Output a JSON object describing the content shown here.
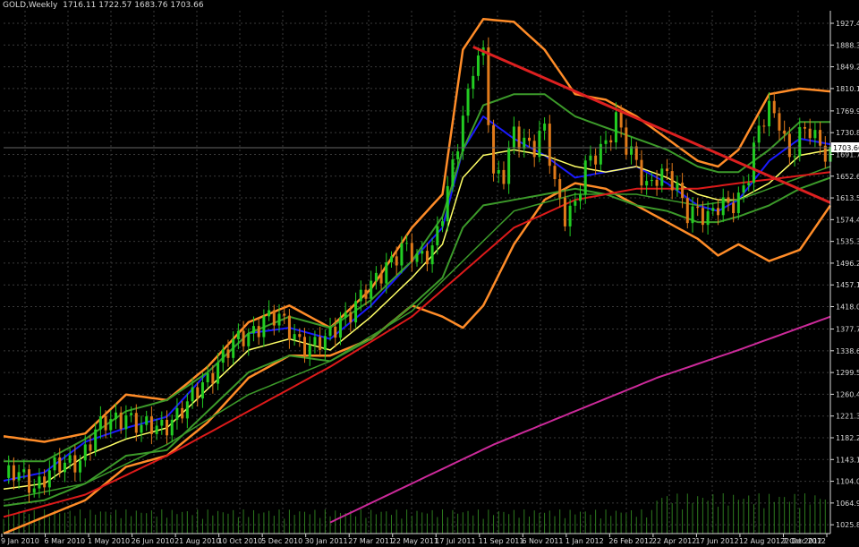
{
  "header": {
    "symbol": "GOLD,Weekly",
    "open": "1716.11",
    "high": "1722.57",
    "low": "1683.76",
    "close": "1703.66"
  },
  "colors": {
    "background": "#000000",
    "grid": "#3a3a3a",
    "axis_text": "#d8d8d8",
    "bull_candle": "#22cc22",
    "bear_candle": "#e07a1a",
    "bollinger": "#ff8c28",
    "ma_fast": "#1a1aff",
    "ma_yellow": "#ffff66",
    "ma_green": "#3c9a2a",
    "ma_red": "#dd1a1a",
    "ma_magenta": "#cc2a9a",
    "trendline": "#dd2020",
    "volume": "#2d7a1e"
  },
  "chart_data": {
    "type": "candlestick",
    "instrument": "GOLD",
    "timeframe": "Weekly",
    "x_ticks": [
      "9 Jan 2010",
      "6 Mar 2010",
      "1 May 2010",
      "26 Jun 2010",
      "21 Aug 2010",
      "10 Oct 2010",
      "5 Dec 2010",
      "30 Jan 2011",
      "27 Mar 2011",
      "22 May 2011",
      "17 Jul 2011",
      "11 Sep 2011",
      "6 Nov 2011",
      "1 Jan 2012",
      "26 Feb 2012",
      "22 Apr 2012",
      "17 Jun 2012",
      "12 Aug 2012",
      "7 Oct 2012",
      "2 Dec 2012"
    ],
    "y_ticks": [
      1927.45,
      1888.35,
      1849.25,
      1810.15,
      1769.9,
      1730.8,
      1691.7,
      1652.6,
      1613.5,
      1574.4,
      1535.3,
      1496.2,
      1457.1,
      1418.0,
      1377.75,
      1338.65,
      1299.55,
      1260.45,
      1221.35,
      1182.25,
      1143.15,
      1104.05,
      1064.95,
      1025.85
    ],
    "current_price": "1703.66",
    "ylim": [
      1010,
      1950
    ],
    "close_path": [
      [
        0,
        1110
      ],
      [
        3,
        1112
      ],
      [
        6,
        1100
      ],
      [
        9,
        1120
      ],
      [
        12,
        1130
      ],
      [
        15,
        1150
      ],
      [
        18,
        1190
      ],
      [
        21,
        1210
      ],
      [
        24,
        1230
      ],
      [
        27,
        1195
      ],
      [
        30,
        1200
      ],
      [
        33,
        1220
      ],
      [
        36,
        1235
      ],
      [
        39,
        1280
      ],
      [
        42,
        1320
      ],
      [
        45,
        1345
      ],
      [
        48,
        1370
      ],
      [
        51,
        1400
      ],
      [
        54,
        1390
      ],
      [
        57,
        1370
      ],
      [
        60,
        1345
      ],
      [
        63,
        1350
      ],
      [
        66,
        1400
      ],
      [
        69,
        1420
      ],
      [
        72,
        1450
      ],
      [
        75,
        1500
      ],
      [
        78,
        1520
      ],
      [
        81,
        1500
      ],
      [
        84,
        1530
      ],
      [
        87,
        1620
      ],
      [
        90,
        1750
      ],
      [
        92,
        1860
      ],
      [
        94,
        1880
      ],
      [
        96,
        1640
      ],
      [
        98,
        1650
      ],
      [
        100,
        1740
      ],
      [
        102,
        1720
      ],
      [
        104,
        1700
      ],
      [
        106,
        1730
      ],
      [
        108,
        1640
      ],
      [
        110,
        1590
      ],
      [
        112,
        1600
      ],
      [
        114,
        1660
      ],
      [
        116,
        1690
      ],
      [
        118,
        1720
      ],
      [
        120,
        1760
      ],
      [
        122,
        1700
      ],
      [
        124,
        1670
      ],
      [
        126,
        1640
      ],
      [
        128,
        1660
      ],
      [
        130,
        1650
      ],
      [
        132,
        1620
      ],
      [
        134,
        1590
      ],
      [
        136,
        1600
      ],
      [
        138,
        1575
      ],
      [
        140,
        1590
      ],
      [
        142,
        1600
      ],
      [
        144,
        1620
      ],
      [
        146,
        1660
      ],
      [
        148,
        1730
      ],
      [
        150,
        1770
      ],
      [
        152,
        1760
      ],
      [
        154,
        1690
      ],
      [
        156,
        1720
      ],
      [
        158,
        1730
      ],
      [
        160,
        1710
      ],
      [
        162,
        1700
      ]
    ],
    "trendline": [
      [
        92,
        1885
      ],
      [
        162,
        1605
      ]
    ],
    "series": [
      {
        "kind": "bollinger_upper",
        "values": [
          [
            0,
            1185
          ],
          [
            8,
            1175
          ],
          [
            16,
            1190
          ],
          [
            24,
            1260
          ],
          [
            32,
            1250
          ],
          [
            40,
            1310
          ],
          [
            48,
            1390
          ],
          [
            56,
            1420
          ],
          [
            64,
            1380
          ],
          [
            72,
            1450
          ],
          [
            80,
            1560
          ],
          [
            86,
            1620
          ],
          [
            90,
            1880
          ],
          [
            94,
            1935
          ],
          [
            100,
            1930
          ],
          [
            106,
            1880
          ],
          [
            112,
            1800
          ],
          [
            118,
            1790
          ],
          [
            124,
            1760
          ],
          [
            130,
            1720
          ],
          [
            136,
            1680
          ],
          [
            140,
            1670
          ],
          [
            144,
            1700
          ],
          [
            150,
            1800
          ],
          [
            156,
            1810
          ],
          [
            162,
            1805
          ]
        ]
      },
      {
        "kind": "bollinger_lower",
        "values": [
          [
            0,
            1010
          ],
          [
            8,
            1040
          ],
          [
            16,
            1070
          ],
          [
            24,
            1130
          ],
          [
            32,
            1150
          ],
          [
            40,
            1210
          ],
          [
            48,
            1290
          ],
          [
            56,
            1330
          ],
          [
            64,
            1330
          ],
          [
            72,
            1360
          ],
          [
            80,
            1420
          ],
          [
            86,
            1400
          ],
          [
            90,
            1380
          ],
          [
            94,
            1420
          ],
          [
            100,
            1530
          ],
          [
            106,
            1610
          ],
          [
            112,
            1640
          ],
          [
            118,
            1630
          ],
          [
            124,
            1600
          ],
          [
            130,
            1570
          ],
          [
            136,
            1540
          ],
          [
            140,
            1510
          ],
          [
            144,
            1530
          ],
          [
            150,
            1500
          ],
          [
            156,
            1520
          ],
          [
            162,
            1600
          ]
        ]
      },
      {
        "kind": "ma_fast_blue",
        "values": [
          [
            0,
            1105
          ],
          [
            8,
            1120
          ],
          [
            16,
            1175
          ],
          [
            24,
            1200
          ],
          [
            32,
            1220
          ],
          [
            40,
            1300
          ],
          [
            48,
            1370
          ],
          [
            56,
            1380
          ],
          [
            64,
            1360
          ],
          [
            72,
            1420
          ],
          [
            80,
            1500
          ],
          [
            86,
            1560
          ],
          [
            90,
            1700
          ],
          [
            94,
            1760
          ],
          [
            100,
            1720
          ],
          [
            106,
            1690
          ],
          [
            112,
            1650
          ],
          [
            118,
            1660
          ],
          [
            124,
            1670
          ],
          [
            130,
            1640
          ],
          [
            136,
            1600
          ],
          [
            140,
            1590
          ],
          [
            144,
            1610
          ],
          [
            150,
            1680
          ],
          [
            156,
            1720
          ],
          [
            162,
            1710
          ]
        ]
      },
      {
        "kind": "ma_yellow",
        "values": [
          [
            0,
            1090
          ],
          [
            8,
            1100
          ],
          [
            16,
            1150
          ],
          [
            24,
            1180
          ],
          [
            32,
            1200
          ],
          [
            40,
            1270
          ],
          [
            48,
            1340
          ],
          [
            56,
            1360
          ],
          [
            64,
            1340
          ],
          [
            72,
            1400
          ],
          [
            80,
            1470
          ],
          [
            86,
            1530
          ],
          [
            90,
            1650
          ],
          [
            94,
            1690
          ],
          [
            100,
            1700
          ],
          [
            106,
            1690
          ],
          [
            112,
            1670
          ],
          [
            118,
            1660
          ],
          [
            124,
            1670
          ],
          [
            130,
            1650
          ],
          [
            136,
            1620
          ],
          [
            140,
            1610
          ],
          [
            144,
            1610
          ],
          [
            150,
            1640
          ],
          [
            156,
            1690
          ],
          [
            162,
            1700
          ]
        ]
      },
      {
        "kind": "ma_green_upper",
        "values": [
          [
            0,
            1140
          ],
          [
            8,
            1140
          ],
          [
            16,
            1180
          ],
          [
            24,
            1230
          ],
          [
            32,
            1250
          ],
          [
            40,
            1300
          ],
          [
            48,
            1370
          ],
          [
            56,
            1400
          ],
          [
            64,
            1380
          ],
          [
            72,
            1430
          ],
          [
            80,
            1500
          ],
          [
            86,
            1580
          ],
          [
            90,
            1700
          ],
          [
            94,
            1780
          ],
          [
            100,
            1800
          ],
          [
            106,
            1800
          ],
          [
            112,
            1760
          ],
          [
            118,
            1740
          ],
          [
            124,
            1720
          ],
          [
            130,
            1700
          ],
          [
            136,
            1670
          ],
          [
            140,
            1660
          ],
          [
            144,
            1660
          ],
          [
            150,
            1700
          ],
          [
            156,
            1750
          ],
          [
            162,
            1750
          ]
        ]
      },
      {
        "kind": "ma_green_lower",
        "values": [
          [
            0,
            1060
          ],
          [
            8,
            1070
          ],
          [
            16,
            1100
          ],
          [
            24,
            1150
          ],
          [
            32,
            1160
          ],
          [
            40,
            1230
          ],
          [
            48,
            1300
          ],
          [
            56,
            1330
          ],
          [
            64,
            1320
          ],
          [
            72,
            1360
          ],
          [
            80,
            1420
          ],
          [
            86,
            1470
          ],
          [
            90,
            1560
          ],
          [
            94,
            1600
          ],
          [
            100,
            1610
          ],
          [
            106,
            1620
          ],
          [
            112,
            1630
          ],
          [
            118,
            1620
          ],
          [
            124,
            1600
          ],
          [
            130,
            1590
          ],
          [
            136,
            1570
          ],
          [
            140,
            1570
          ],
          [
            144,
            1580
          ],
          [
            150,
            1600
          ],
          [
            156,
            1630
          ],
          [
            162,
            1650
          ]
        ]
      },
      {
        "kind": "ma_green_long",
        "values": [
          [
            0,
            1070
          ],
          [
            16,
            1100
          ],
          [
            32,
            1170
          ],
          [
            48,
            1260
          ],
          [
            64,
            1320
          ],
          [
            80,
            1410
          ],
          [
            90,
            1500
          ],
          [
            100,
            1590
          ],
          [
            112,
            1620
          ],
          [
            124,
            1620
          ],
          [
            136,
            1600
          ],
          [
            144,
            1610
          ],
          [
            162,
            1670
          ]
        ]
      },
      {
        "kind": "ma_red",
        "values": [
          [
            0,
            1040
          ],
          [
            16,
            1080
          ],
          [
            32,
            1150
          ],
          [
            48,
            1230
          ],
          [
            64,
            1310
          ],
          [
            80,
            1400
          ],
          [
            90,
            1480
          ],
          [
            100,
            1560
          ],
          [
            112,
            1610
          ],
          [
            124,
            1630
          ],
          [
            136,
            1630
          ],
          [
            144,
            1640
          ],
          [
            162,
            1660
          ]
        ]
      },
      {
        "kind": "ma_magenta",
        "values": [
          [
            64,
            1030
          ],
          [
            80,
            1100
          ],
          [
            96,
            1170
          ],
          [
            112,
            1230
          ],
          [
            128,
            1290
          ],
          [
            144,
            1340
          ],
          [
            162,
            1400
          ]
        ]
      }
    ],
    "volume": {
      "bars": 163,
      "level_before": 0.45,
      "level_after": 0.75,
      "switch_index": 128
    }
  }
}
